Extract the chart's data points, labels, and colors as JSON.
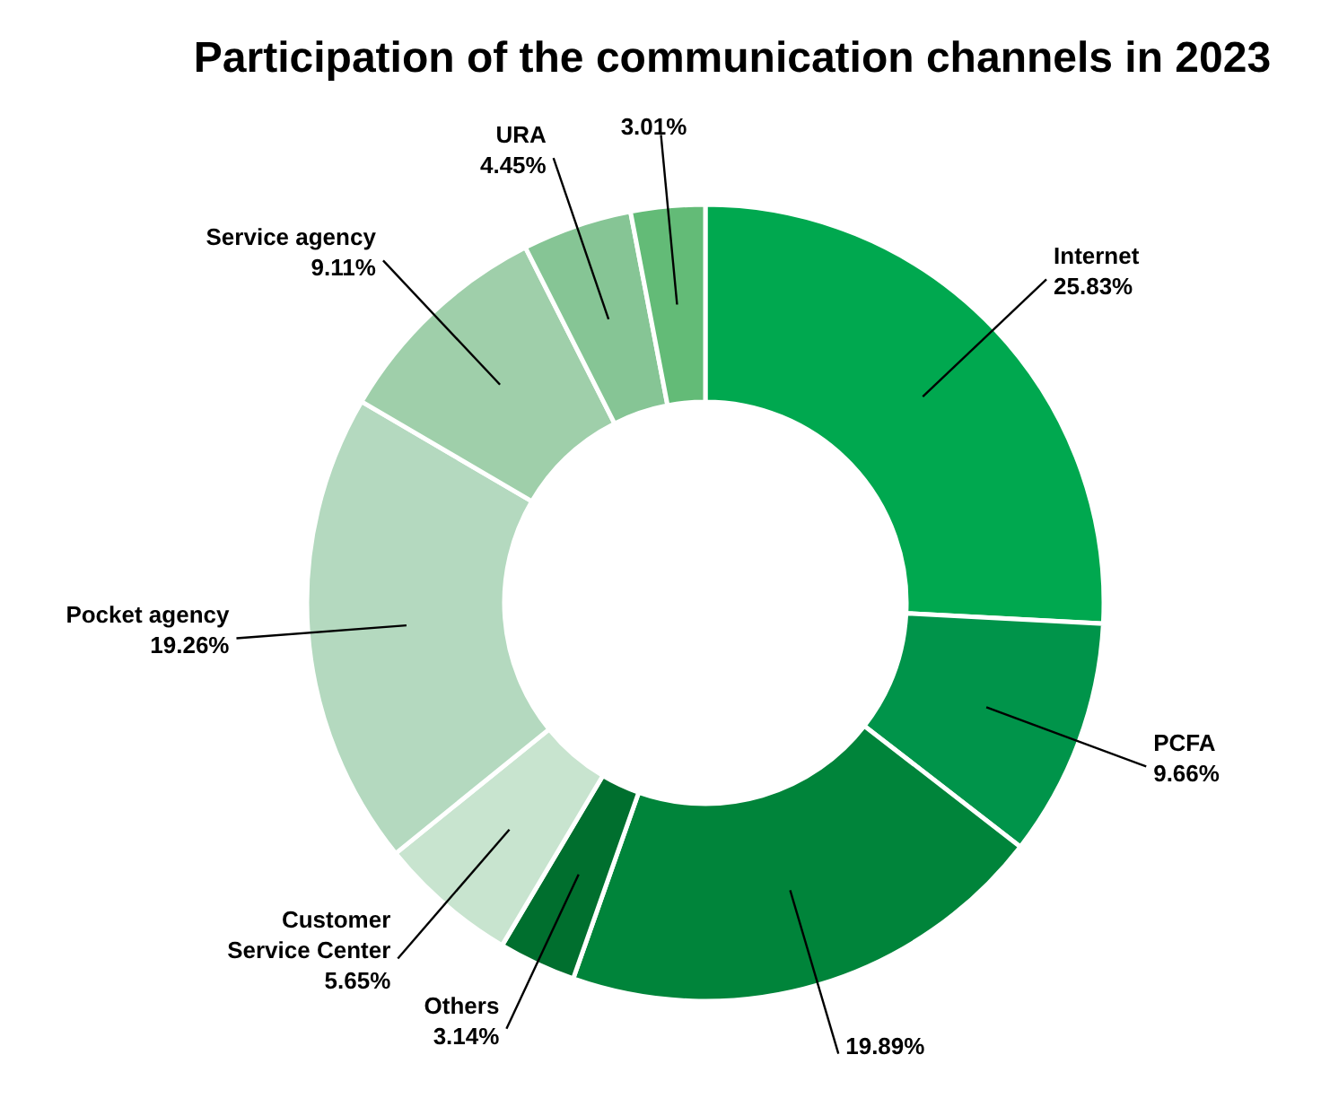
{
  "chart_data": {
    "type": "donut",
    "title": "Participation of the communication channels in 2023",
    "categories": [
      "Internet",
      "PCFA",
      null,
      "Others",
      "Customer Service Center",
      "Pocket agency",
      "Service agency",
      "URA",
      null
    ],
    "values": [
      25.83,
      9.66,
      19.89,
      3.14,
      5.65,
      19.26,
      9.11,
      4.45,
      3.01
    ],
    "value_labels": [
      "25.83%",
      "9.66%",
      "19.89%",
      "3.14%",
      "5.65%",
      "19.26%",
      "9.11%",
      "4.45%",
      "3.01%"
    ],
    "colors": [
      "#00a84f",
      "#00944a",
      "#00843a",
      "#006f2e",
      "#c8e4cf",
      "#b4d9bf",
      "#9fcfaa",
      "#86c595",
      "#63bb77"
    ]
  }
}
